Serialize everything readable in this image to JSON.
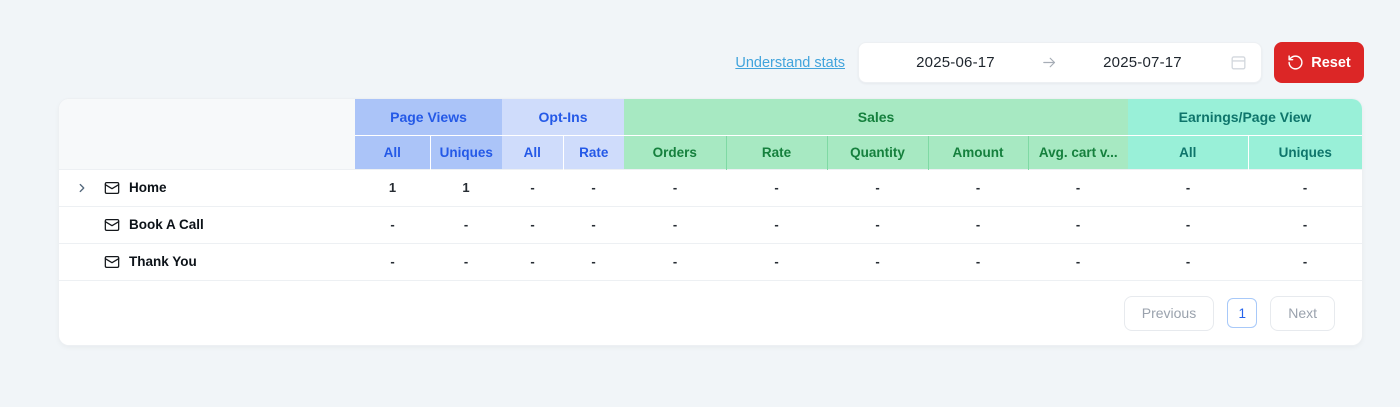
{
  "toolbar": {
    "understand_stats": "Understand stats",
    "date_start": "2025-06-17",
    "date_end": "2025-07-17",
    "reset": "Reset"
  },
  "table": {
    "groups": [
      {
        "label": "Page Views",
        "columns": [
          "All",
          "Uniques"
        ],
        "bg": "#abc4f8",
        "text": "#2459e7",
        "divider": "rgba(255,255,255,0.8)"
      },
      {
        "label": "Opt-Ins",
        "columns": [
          "All",
          "Rate"
        ],
        "bg": "#cfdcfb",
        "text": "#2459e7",
        "divider": "rgba(255,255,255,0.85)"
      },
      {
        "label": "Sales",
        "columns": [
          "Orders",
          "Rate",
          "Quantity",
          "Amount",
          "Avg. cart v..."
        ],
        "bg": "#a7e9c2",
        "text": "#15803d",
        "divider": "#7fd9a4"
      },
      {
        "label": "Earnings/Page View",
        "columns": [
          "All",
          "Uniques"
        ],
        "bg": "#99f0d8",
        "text": "#0e756b",
        "divider": "rgba(255,255,255,0.65)"
      }
    ],
    "rows": [
      {
        "label": "Home",
        "expandable": true,
        "values": [
          "1",
          "1",
          "-",
          "-",
          "-",
          "-",
          "-",
          "-",
          "-",
          "-",
          "-"
        ]
      },
      {
        "label": "Book A Call",
        "expandable": false,
        "values": [
          "-",
          "-",
          "-",
          "-",
          "-",
          "-",
          "-",
          "-",
          "-",
          "-",
          "-"
        ]
      },
      {
        "label": "Thank You",
        "expandable": false,
        "values": [
          "-",
          "-",
          "-",
          "-",
          "-",
          "-",
          "-",
          "-",
          "-",
          "-",
          "-"
        ]
      }
    ],
    "pagination": {
      "previous": "Previous",
      "page": "1",
      "next": "Next"
    }
  },
  "colors": {
    "page_bg": "#f1f5f8",
    "accent_red": "#dc2626",
    "link_blue": "#42a4dc",
    "pagination_active_blue": "#2563eb"
  }
}
